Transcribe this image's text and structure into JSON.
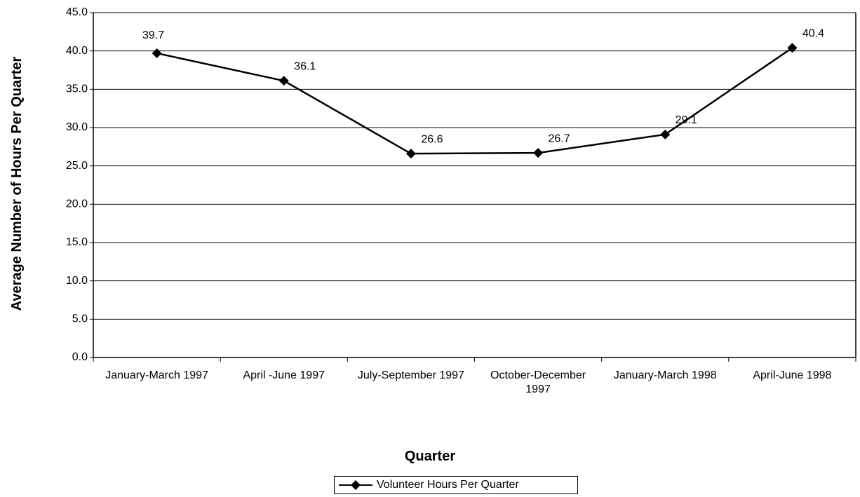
{
  "chart_data": {
    "type": "line",
    "x_label": "Quarter",
    "y_label": "Average Number of Hours Per Quarter",
    "categories": [
      "January-March 1997",
      "April -June 1997",
      "July-September 1997",
      "October-December 1997",
      "January-March 1998",
      "April-June 1998"
    ],
    "series": [
      {
        "name": "Volunteer Hours Per Quarter",
        "color": "#000000",
        "values": [
          39.7,
          36.1,
          26.6,
          26.7,
          29.1,
          40.4
        ]
      }
    ],
    "ylim": [
      0,
      45
    ],
    "yticks": [
      {
        "value": 0,
        "label": "0.0"
      },
      {
        "value": 5,
        "label": "5.0"
      },
      {
        "value": 10,
        "label": "10.0"
      },
      {
        "value": 15,
        "label": "15.0"
      },
      {
        "value": 20,
        "label": "20.0"
      },
      {
        "value": 25,
        "label": "25.0"
      },
      {
        "value": 30,
        "label": "30.0"
      },
      {
        "value": 35,
        "label": "35.0"
      },
      {
        "value": 40,
        "label": "40.0"
      },
      {
        "value": 45,
        "label": "45.0"
      }
    ],
    "grid": true,
    "legend": "bottom"
  }
}
